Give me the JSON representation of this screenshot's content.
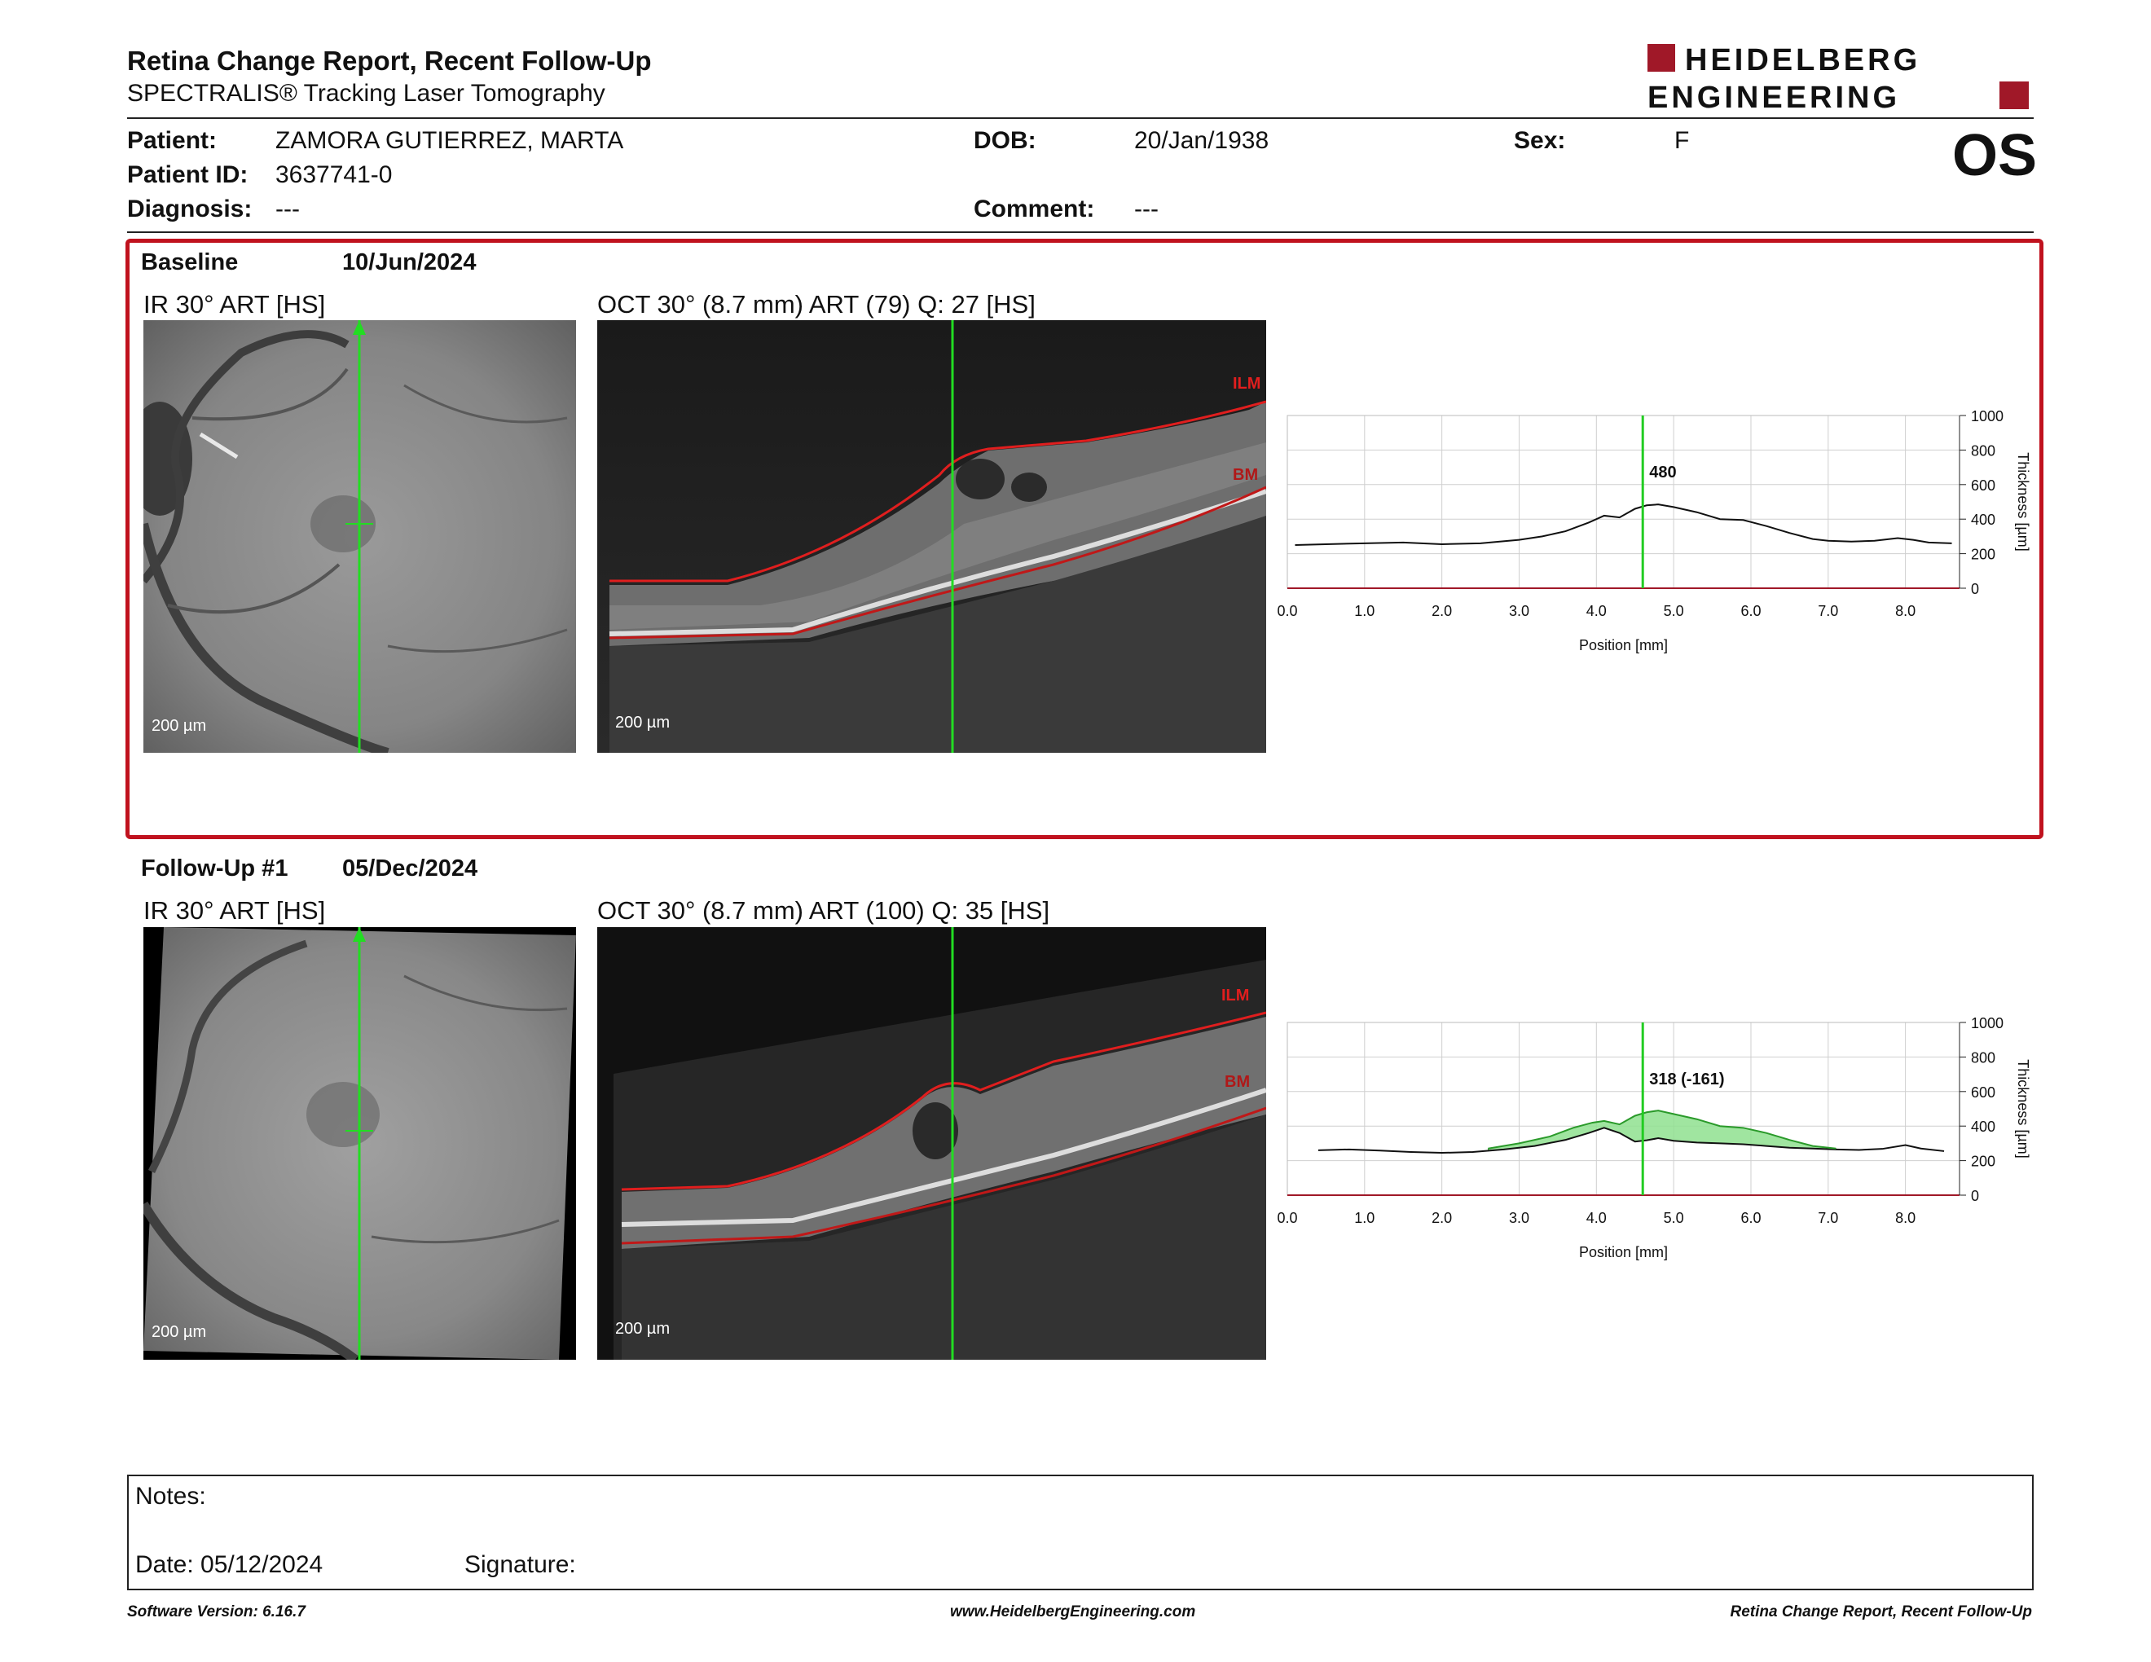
{
  "header": {
    "title": "Retina Change Report, Recent Follow-Up",
    "subtitle": "SPECTRALIS® Tracking Laser Tomography",
    "logo_line1": "HEIDELBERG",
    "logo_line2": "ENGINEERING",
    "eye": "OS",
    "brand_color": "#a01828"
  },
  "patient": {
    "patient_label": "Patient:",
    "patient_value": "ZAMORA GUTIERREZ, MARTA",
    "dob_label": "DOB:",
    "dob_value": "20/Jan/1938",
    "sex_label": "Sex:",
    "sex_value": "F",
    "id_label": "Patient ID:",
    "id_value": "3637741-0",
    "diagnosis_label": "Diagnosis:",
    "diagnosis_value": "---",
    "comment_label": "Comment:",
    "comment_value": "---"
  },
  "baseline": {
    "label": "Baseline",
    "date": "10/Jun/2024",
    "ir_title": "IR 30° ART [HS]",
    "oct_title": "OCT 30° (8.7 mm) ART (79) Q: 27 [HS]",
    "ir_scale": "200 µm",
    "oct_scale": "200 µm",
    "ilm_label": "ILM",
    "bm_label": "BM"
  },
  "followup": {
    "label": "Follow-Up #1",
    "date": "05/Dec/2024",
    "ir_title": "IR 30° ART [HS]",
    "oct_title": "OCT 30° (8.7 mm) ART (100) Q: 35 [HS]",
    "ir_scale": "200 µm",
    "oct_scale": "200 µm",
    "ilm_label": "ILM",
    "bm_label": "BM"
  },
  "chart_data": [
    {
      "type": "line",
      "xlabel": "Position [mm]",
      "ylabel": "Thickness [µm]",
      "xlim": [
        0,
        8.7
      ],
      "ylim": [
        0,
        1000
      ],
      "xticks": [
        "0.0",
        "1.0",
        "2.0",
        "3.0",
        "4.0",
        "5.0",
        "6.0",
        "7.0",
        "8.0"
      ],
      "yticks": [
        "0",
        "200",
        "400",
        "600",
        "800",
        "1000"
      ],
      "cursor_x": 4.6,
      "cursor_label": "480",
      "series": [
        {
          "x": [
            0.1,
            0.5,
            1.0,
            1.5,
            2.0,
            2.5,
            3.0,
            3.3,
            3.6,
            3.9,
            4.1,
            4.3,
            4.5,
            4.65,
            4.8,
            5.0,
            5.3,
            5.6,
            5.9,
            6.2,
            6.5,
            6.8,
            7.0,
            7.3,
            7.6,
            7.9,
            8.1,
            8.3,
            8.6
          ],
          "values": [
            250,
            255,
            260,
            265,
            255,
            260,
            280,
            300,
            330,
            380,
            420,
            410,
            460,
            480,
            485,
            470,
            440,
            400,
            395,
            360,
            320,
            285,
            275,
            270,
            275,
            290,
            280,
            265,
            260
          ]
        }
      ]
    },
    {
      "type": "area",
      "xlabel": "Position [mm]",
      "ylabel": "Thickness [µm]",
      "xlim": [
        0,
        8.7
      ],
      "ylim": [
        0,
        1000
      ],
      "xticks": [
        "0.0",
        "1.0",
        "2.0",
        "3.0",
        "4.0",
        "5.0",
        "6.0",
        "7.0",
        "8.0"
      ],
      "yticks": [
        "0",
        "200",
        "400",
        "600",
        "800",
        "1000"
      ],
      "cursor_x": 4.6,
      "cursor_label": "318 (-161)",
      "series": [
        {
          "x": [
            0.4,
            0.8,
            1.2,
            1.6,
            2.0,
            2.4,
            2.8,
            3.2,
            3.6,
            3.9,
            4.1,
            4.3,
            4.5,
            4.65,
            4.8,
            5.0,
            5.3,
            5.6,
            5.9,
            6.2,
            6.5,
            6.8,
            7.1,
            7.4,
            7.7,
            8.0,
            8.2,
            8.5
          ],
          "values": [
            260,
            265,
            258,
            250,
            245,
            250,
            265,
            285,
            320,
            360,
            390,
            360,
            310,
            318,
            330,
            315,
            305,
            300,
            295,
            285,
            275,
            270,
            265,
            262,
            268,
            290,
            270,
            255
          ]
        },
        {
          "x": [
            2.6,
            3.0,
            3.4,
            3.7,
            3.95,
            4.1,
            4.3,
            4.5,
            4.65,
            4.8,
            5.0,
            5.3,
            5.6,
            5.9,
            6.2,
            6.5,
            6.8,
            7.1
          ],
          "values": [
            270,
            300,
            340,
            390,
            420,
            430,
            410,
            460,
            480,
            490,
            470,
            440,
            400,
            390,
            360,
            320,
            285,
            270
          ]
        }
      ]
    }
  ],
  "notes": {
    "notes_label": "Notes:",
    "date_label": "Date: 05/12/2024",
    "signature_label": "Signature:"
  },
  "footer": {
    "left": "Software Version: 6.16.7",
    "center": "www.HeidelbergEngineering.com",
    "right": "Retina Change Report, Recent Follow-Up"
  }
}
